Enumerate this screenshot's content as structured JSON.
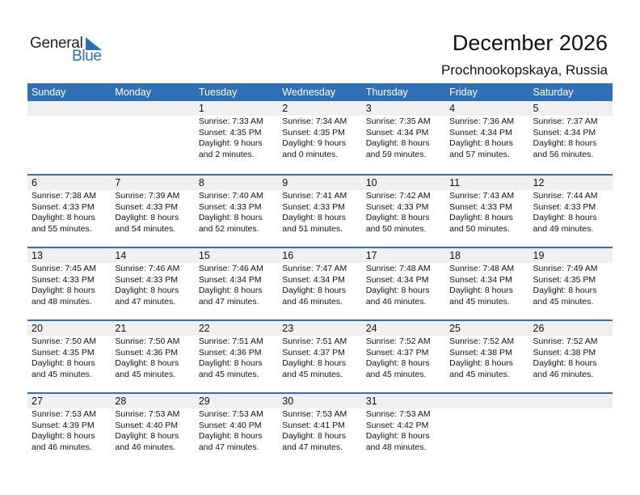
{
  "logo": {
    "text_general": "General",
    "text_blue": "Blue"
  },
  "title": "December 2026",
  "subtitle": "Prochnookopskaya, Russia",
  "colors": {
    "accent": "#2f6fb5",
    "band": "#f0f0f0"
  },
  "weekdays": [
    "Sunday",
    "Monday",
    "Tuesday",
    "Wednesday",
    "Thursday",
    "Friday",
    "Saturday"
  ],
  "weeks": [
    [
      null,
      null,
      {
        "day": "1",
        "sunrise": "Sunrise: 7:33 AM",
        "sunset": "Sunset: 4:35 PM",
        "daylight": "Daylight: 9 hours",
        "minutes": "and 2 minutes."
      },
      {
        "day": "2",
        "sunrise": "Sunrise: 7:34 AM",
        "sunset": "Sunset: 4:35 PM",
        "daylight": "Daylight: 9 hours",
        "minutes": "and 0 minutes."
      },
      {
        "day": "3",
        "sunrise": "Sunrise: 7:35 AM",
        "sunset": "Sunset: 4:34 PM",
        "daylight": "Daylight: 8 hours",
        "minutes": "and 59 minutes."
      },
      {
        "day": "4",
        "sunrise": "Sunrise: 7:36 AM",
        "sunset": "Sunset: 4:34 PM",
        "daylight": "Daylight: 8 hours",
        "minutes": "and 57 minutes."
      },
      {
        "day": "5",
        "sunrise": "Sunrise: 7:37 AM",
        "sunset": "Sunset: 4:34 PM",
        "daylight": "Daylight: 8 hours",
        "minutes": "and 56 minutes."
      }
    ],
    [
      {
        "day": "6",
        "sunrise": "Sunrise: 7:38 AM",
        "sunset": "Sunset: 4:33 PM",
        "daylight": "Daylight: 8 hours",
        "minutes": "and 55 minutes."
      },
      {
        "day": "7",
        "sunrise": "Sunrise: 7:39 AM",
        "sunset": "Sunset: 4:33 PM",
        "daylight": "Daylight: 8 hours",
        "minutes": "and 54 minutes."
      },
      {
        "day": "8",
        "sunrise": "Sunrise: 7:40 AM",
        "sunset": "Sunset: 4:33 PM",
        "daylight": "Daylight: 8 hours",
        "minutes": "and 52 minutes."
      },
      {
        "day": "9",
        "sunrise": "Sunrise: 7:41 AM",
        "sunset": "Sunset: 4:33 PM",
        "daylight": "Daylight: 8 hours",
        "minutes": "and 51 minutes."
      },
      {
        "day": "10",
        "sunrise": "Sunrise: 7:42 AM",
        "sunset": "Sunset: 4:33 PM",
        "daylight": "Daylight: 8 hours",
        "minutes": "and 50 minutes."
      },
      {
        "day": "11",
        "sunrise": "Sunrise: 7:43 AM",
        "sunset": "Sunset: 4:33 PM",
        "daylight": "Daylight: 8 hours",
        "minutes": "and 50 minutes."
      },
      {
        "day": "12",
        "sunrise": "Sunrise: 7:44 AM",
        "sunset": "Sunset: 4:33 PM",
        "daylight": "Daylight: 8 hours",
        "minutes": "and 49 minutes."
      }
    ],
    [
      {
        "day": "13",
        "sunrise": "Sunrise: 7:45 AM",
        "sunset": "Sunset: 4:33 PM",
        "daylight": "Daylight: 8 hours",
        "minutes": "and 48 minutes."
      },
      {
        "day": "14",
        "sunrise": "Sunrise: 7:46 AM",
        "sunset": "Sunset: 4:33 PM",
        "daylight": "Daylight: 8 hours",
        "minutes": "and 47 minutes."
      },
      {
        "day": "15",
        "sunrise": "Sunrise: 7:46 AM",
        "sunset": "Sunset: 4:34 PM",
        "daylight": "Daylight: 8 hours",
        "minutes": "and 47 minutes."
      },
      {
        "day": "16",
        "sunrise": "Sunrise: 7:47 AM",
        "sunset": "Sunset: 4:34 PM",
        "daylight": "Daylight: 8 hours",
        "minutes": "and 46 minutes."
      },
      {
        "day": "17",
        "sunrise": "Sunrise: 7:48 AM",
        "sunset": "Sunset: 4:34 PM",
        "daylight": "Daylight: 8 hours",
        "minutes": "and 46 minutes."
      },
      {
        "day": "18",
        "sunrise": "Sunrise: 7:48 AM",
        "sunset": "Sunset: 4:34 PM",
        "daylight": "Daylight: 8 hours",
        "minutes": "and 45 minutes."
      },
      {
        "day": "19",
        "sunrise": "Sunrise: 7:49 AM",
        "sunset": "Sunset: 4:35 PM",
        "daylight": "Daylight: 8 hours",
        "minutes": "and 45 minutes."
      }
    ],
    [
      {
        "day": "20",
        "sunrise": "Sunrise: 7:50 AM",
        "sunset": "Sunset: 4:35 PM",
        "daylight": "Daylight: 8 hours",
        "minutes": "and 45 minutes."
      },
      {
        "day": "21",
        "sunrise": "Sunrise: 7:50 AM",
        "sunset": "Sunset: 4:36 PM",
        "daylight": "Daylight: 8 hours",
        "minutes": "and 45 minutes."
      },
      {
        "day": "22",
        "sunrise": "Sunrise: 7:51 AM",
        "sunset": "Sunset: 4:36 PM",
        "daylight": "Daylight: 8 hours",
        "minutes": "and 45 minutes."
      },
      {
        "day": "23",
        "sunrise": "Sunrise: 7:51 AM",
        "sunset": "Sunset: 4:37 PM",
        "daylight": "Daylight: 8 hours",
        "minutes": "and 45 minutes."
      },
      {
        "day": "24",
        "sunrise": "Sunrise: 7:52 AM",
        "sunset": "Sunset: 4:37 PM",
        "daylight": "Daylight: 8 hours",
        "minutes": "and 45 minutes."
      },
      {
        "day": "25",
        "sunrise": "Sunrise: 7:52 AM",
        "sunset": "Sunset: 4:38 PM",
        "daylight": "Daylight: 8 hours",
        "minutes": "and 45 minutes."
      },
      {
        "day": "26",
        "sunrise": "Sunrise: 7:52 AM",
        "sunset": "Sunset: 4:38 PM",
        "daylight": "Daylight: 8 hours",
        "minutes": "and 46 minutes."
      }
    ],
    [
      {
        "day": "27",
        "sunrise": "Sunrise: 7:53 AM",
        "sunset": "Sunset: 4:39 PM",
        "daylight": "Daylight: 8 hours",
        "minutes": "and 46 minutes."
      },
      {
        "day": "28",
        "sunrise": "Sunrise: 7:53 AM",
        "sunset": "Sunset: 4:40 PM",
        "daylight": "Daylight: 8 hours",
        "minutes": "and 46 minutes."
      },
      {
        "day": "29",
        "sunrise": "Sunrise: 7:53 AM",
        "sunset": "Sunset: 4:40 PM",
        "daylight": "Daylight: 8 hours",
        "minutes": "and 47 minutes."
      },
      {
        "day": "30",
        "sunrise": "Sunrise: 7:53 AM",
        "sunset": "Sunset: 4:41 PM",
        "daylight": "Daylight: 8 hours",
        "minutes": "and 47 minutes."
      },
      {
        "day": "31",
        "sunrise": "Sunrise: 7:53 AM",
        "sunset": "Sunset: 4:42 PM",
        "daylight": "Daylight: 8 hours",
        "minutes": "and 48 minutes."
      },
      null,
      null
    ]
  ]
}
